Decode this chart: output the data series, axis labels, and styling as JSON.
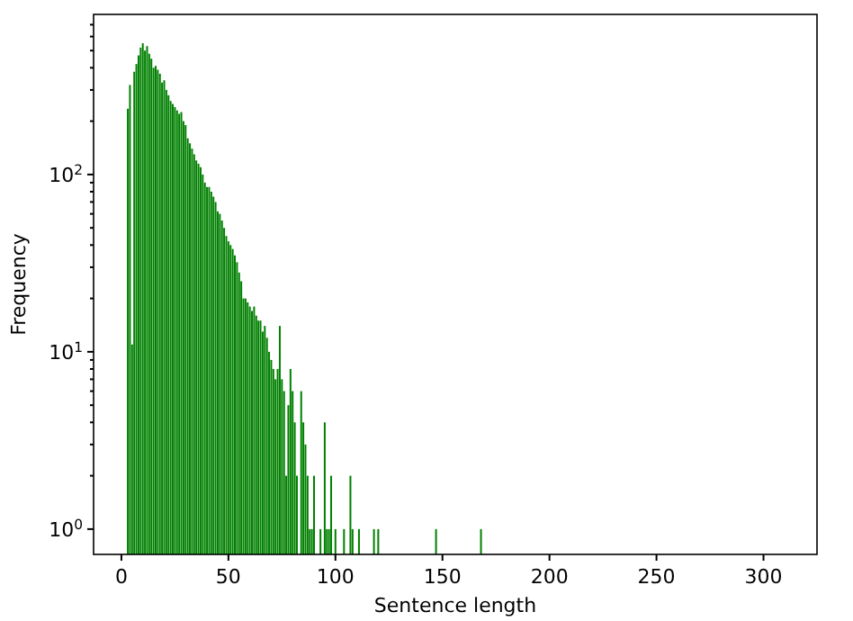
{
  "chart_data": {
    "type": "bar",
    "xlabel": "Sentence length",
    "ylabel": "Frequency",
    "log": "y",
    "color": "#008000",
    "x": [
      3,
      4,
      5,
      6,
      7,
      8,
      9,
      10,
      11,
      12,
      13,
      14,
      15,
      16,
      17,
      18,
      19,
      20,
      21,
      22,
      23,
      24,
      25,
      26,
      27,
      28,
      29,
      30,
      31,
      32,
      33,
      34,
      35,
      36,
      37,
      38,
      39,
      40,
      41,
      42,
      43,
      44,
      45,
      46,
      47,
      48,
      49,
      50,
      51,
      52,
      53,
      54,
      55,
      56,
      57,
      58,
      59,
      60,
      61,
      62,
      63,
      64,
      65,
      66,
      67,
      68,
      69,
      70,
      71,
      72,
      73,
      74,
      75,
      76,
      77,
      78,
      79,
      80,
      81,
      82,
      84,
      85,
      86,
      87,
      88,
      89,
      90,
      93,
      95,
      96,
      97,
      98,
      100,
      104,
      107,
      108,
      111,
      118,
      120,
      147,
      168
    ],
    "values": [
      235,
      320,
      11,
      380,
      420,
      470,
      520,
      550,
      500,
      530,
      480,
      450,
      400,
      410,
      390,
      370,
      330,
      340,
      300,
      280,
      260,
      250,
      240,
      230,
      220,
      225,
      200,
      190,
      160,
      150,
      140,
      130,
      120,
      115,
      110,
      100,
      90,
      85,
      85,
      80,
      75,
      70,
      62,
      60,
      55,
      50,
      45,
      42,
      40,
      38,
      35,
      32,
      28,
      25,
      20,
      20,
      19,
      18,
      17,
      18,
      16,
      15,
      15,
      13,
      14,
      12,
      10,
      9,
      8,
      7,
      8,
      14,
      7,
      6,
      2,
      5,
      8,
      6,
      4,
      2,
      6,
      4,
      3,
      2,
      1,
      1,
      2,
      1,
      4,
      1,
      1,
      2,
      1,
      1,
      2,
      1,
      1,
      1,
      1,
      1,
      1
    ],
    "xlim": [
      -13,
      325
    ],
    "xticks": [
      0,
      50,
      100,
      150,
      200,
      250,
      300
    ],
    "ylim": [
      0.72,
      800
    ],
    "yticks": [
      {
        "value": 1,
        "label": "10$^{0}$"
      },
      {
        "value": 10,
        "label": "10$^{1}$"
      },
      {
        "value": 100,
        "label": "10$^{2}$"
      },
      {
        "value": 2,
        "label": null
      },
      {
        "value": 3,
        "label": null
      },
      {
        "value": 4,
        "label": null
      },
      {
        "value": 5,
        "label": null
      },
      {
        "value": 6,
        "label": null
      },
      {
        "value": 7,
        "label": null
      },
      {
        "value": 8,
        "label": null
      },
      {
        "value": 9,
        "label": null
      },
      {
        "value": 20,
        "label": null
      },
      {
        "value": 30,
        "label": null
      },
      {
        "value": 40,
        "label": null
      },
      {
        "value": 50,
        "label": null
      },
      {
        "value": 60,
        "label": null
      },
      {
        "value": 70,
        "label": null
      },
      {
        "value": 80,
        "label": null
      },
      {
        "value": 90,
        "label": null
      },
      {
        "value": 200,
        "label": null
      },
      {
        "value": 300,
        "label": null
      },
      {
        "value": 400,
        "label": null
      },
      {
        "value": 500,
        "label": null
      },
      {
        "value": 600,
        "label": null
      },
      {
        "value": 700,
        "label": null
      }
    ]
  }
}
